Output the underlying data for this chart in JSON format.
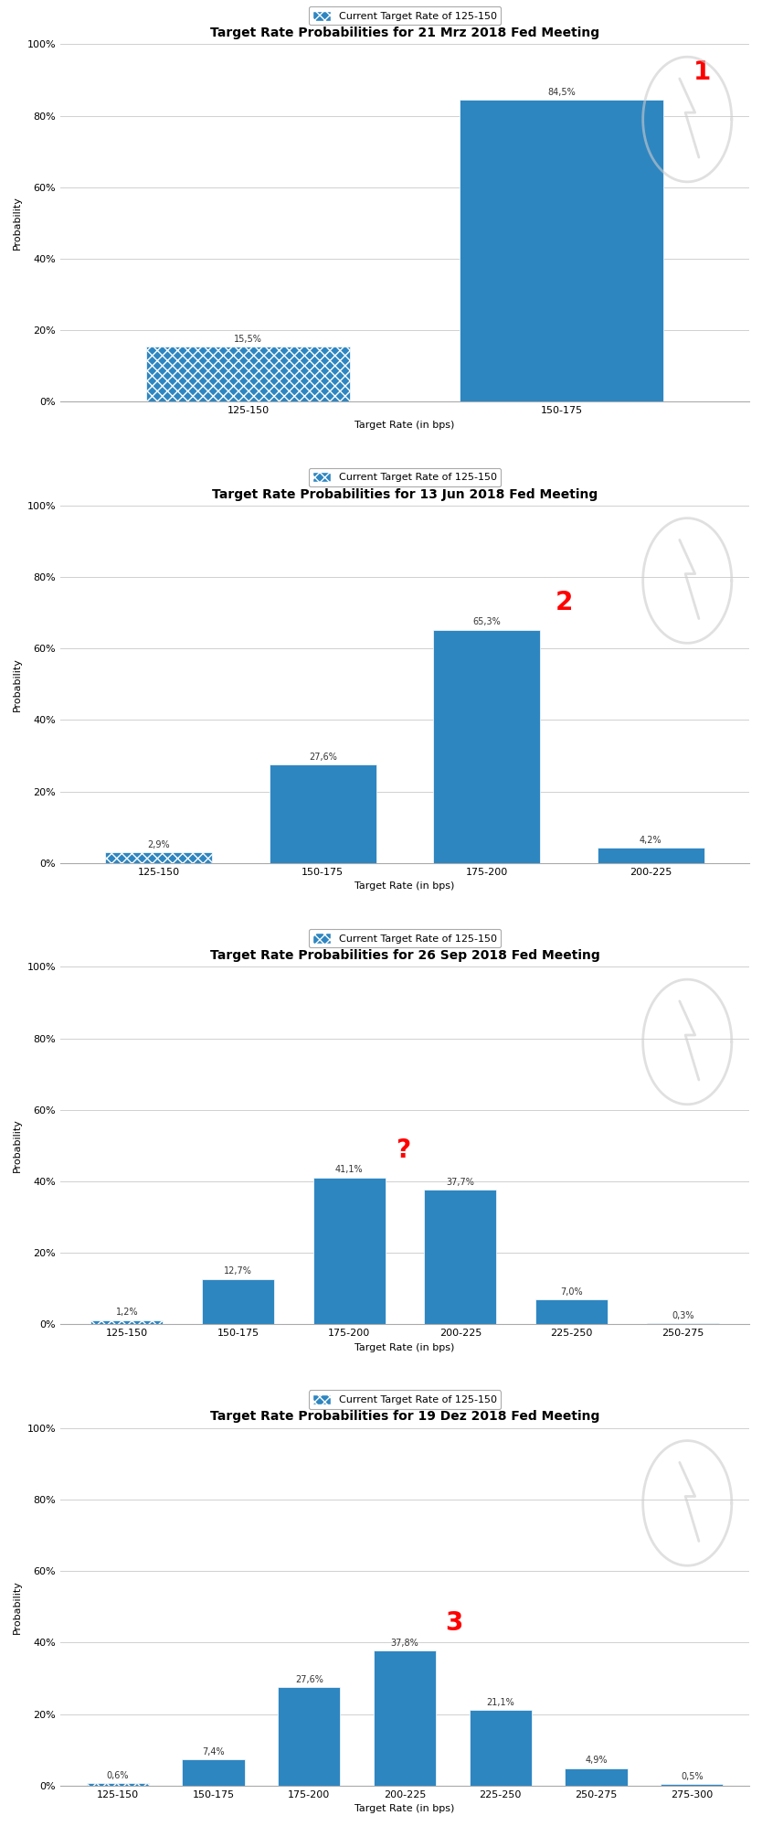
{
  "charts": [
    {
      "title": "Target Rate Probabilities for 21 Mrz 2018 Fed Meeting",
      "legend_label": "Current Target Rate of 125-150",
      "categories": [
        "125-150",
        "150-175"
      ],
      "values": [
        15.5,
        84.5
      ],
      "current_rate_idx": 0,
      "annotation": {
        "text": "1",
        "bar_idx": 1,
        "color": "red"
      },
      "ylim": [
        0,
        100
      ]
    },
    {
      "title": "Target Rate Probabilities for 13 Jun 2018 Fed Meeting",
      "legend_label": "Current Target Rate of 125-150",
      "categories": [
        "125-150",
        "150-175",
        "175-200",
        "200-225"
      ],
      "values": [
        2.9,
        27.6,
        65.3,
        4.2
      ],
      "current_rate_idx": 0,
      "annotation": {
        "text": "2",
        "bar_idx": 2,
        "color": "red"
      },
      "ylim": [
        0,
        100
      ]
    },
    {
      "title": "Target Rate Probabilities for 26 Sep 2018 Fed Meeting",
      "legend_label": "Current Target Rate of 125-150",
      "categories": [
        "125-150",
        "150-175",
        "175-200",
        "200-225",
        "225-250",
        "250-275"
      ],
      "values": [
        1.2,
        12.7,
        41.1,
        37.7,
        7.0,
        0.3
      ],
      "current_rate_idx": 0,
      "annotation": {
        "text": "?",
        "bar_idx": 2,
        "color": "red"
      },
      "ylim": [
        0,
        100
      ]
    },
    {
      "title": "Target Rate Probabilities for 19 Dez 2018 Fed Meeting",
      "legend_label": "Current Target Rate of 125-150",
      "categories": [
        "125-150",
        "150-175",
        "175-200",
        "200-225",
        "225-250",
        "250-275",
        "275-300"
      ],
      "values": [
        0.6,
        7.4,
        27.6,
        37.8,
        21.1,
        4.9,
        0.5
      ],
      "current_rate_idx": 0,
      "annotation": {
        "text": "3",
        "bar_idx": 3,
        "color": "red"
      },
      "ylim": [
        0,
        100
      ]
    }
  ],
  "bar_color": "#2E86C1",
  "bg_color": "#FFFFFF",
  "grid_color": "#D0D0D0",
  "title_fontsize": 10,
  "label_fontsize": 8,
  "tick_fontsize": 8,
  "annotation_fontsize": 20,
  "value_label_fontsize": 7,
  "xlabel": "Target Rate (in bps)",
  "ylabel": "Probability",
  "bar_width": 0.65
}
